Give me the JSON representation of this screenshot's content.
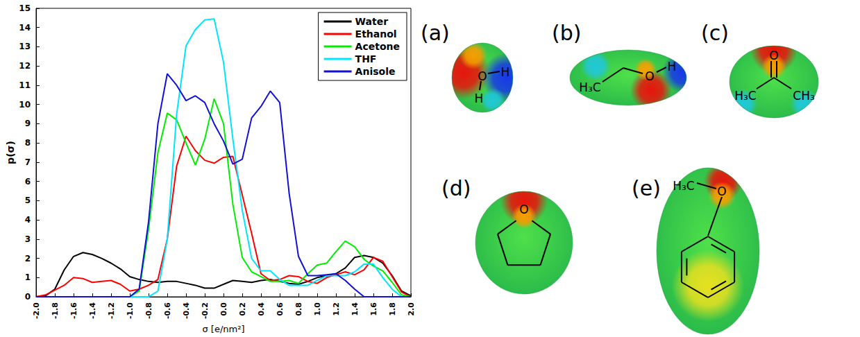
{
  "chart_data": {
    "type": "line",
    "x_label": "σ [e/nm²]",
    "y_label": "p(σ)",
    "x": [
      -2.0,
      -1.9,
      -1.8,
      -1.7,
      -1.6,
      -1.5,
      -1.4,
      -1.3,
      -1.2,
      -1.1,
      -1.0,
      -0.9,
      -0.8,
      -0.7,
      -0.6,
      -0.5,
      -0.4,
      -0.3,
      -0.2,
      -0.1,
      0.0,
      0.1,
      0.2,
      0.3,
      0.4,
      0.5,
      0.6,
      0.7,
      0.8,
      0.9,
      1.0,
      1.1,
      1.2,
      1.3,
      1.4,
      1.5,
      1.6,
      1.7,
      1.8,
      1.9,
      2.0
    ],
    "series": [
      {
        "name": "Water",
        "color": "#000000",
        "values": [
          0,
          0.05,
          0.4,
          1.4,
          2.1,
          2.3,
          2.2,
          2.0,
          1.75,
          1.45,
          1.05,
          0.9,
          0.8,
          0.75,
          0.8,
          0.8,
          0.7,
          0.6,
          0.45,
          0.45,
          0.65,
          0.85,
          0.8,
          0.75,
          0.85,
          0.9,
          0.8,
          0.7,
          0.65,
          0.8,
          1.0,
          1.1,
          1.2,
          1.5,
          2.05,
          2.15,
          2.05,
          1.75,
          1.1,
          0.3,
          0.05
        ]
      },
      {
        "name": "Ethanol",
        "color": "#ff0000",
        "values": [
          0,
          0.1,
          0.35,
          0.6,
          1.0,
          0.95,
          0.75,
          0.8,
          0.85,
          0.65,
          0.3,
          0.4,
          0.6,
          0.9,
          3.0,
          6.8,
          8.35,
          7.6,
          7.1,
          6.95,
          7.25,
          7.3,
          5.3,
          3.3,
          1.2,
          0.85,
          0.9,
          1.1,
          1.05,
          0.8,
          0.7,
          1.0,
          1.15,
          1.3,
          1.15,
          1.4,
          2.05,
          1.85,
          1.05,
          0.25,
          0
        ]
      },
      {
        "name": "Acetone",
        "color": "#00ee00",
        "values": [
          0,
          0,
          0,
          0,
          0,
          0,
          0,
          0,
          0,
          0,
          0,
          0.3,
          3.5,
          7.5,
          9.55,
          9.2,
          8.0,
          6.85,
          8.2,
          10.3,
          9.0,
          4.8,
          2.05,
          1.3,
          1.05,
          0.8,
          0.8,
          0.85,
          0.7,
          1.2,
          1.65,
          1.75,
          2.35,
          2.9,
          2.6,
          1.95,
          1.6,
          1.35,
          0.75,
          0.1,
          0
        ]
      },
      {
        "name": "THF",
        "color": "#00e5ff",
        "values": [
          0,
          0,
          0,
          0,
          0,
          0,
          0,
          0,
          0,
          0,
          0,
          0,
          0,
          0.3,
          3.0,
          9.5,
          13.05,
          13.9,
          14.4,
          14.45,
          12.2,
          8.2,
          4.5,
          2.0,
          1.35,
          1.35,
          0.9,
          0.6,
          0.6,
          0.6,
          0.85,
          1.1,
          1.1,
          1.1,
          1.3,
          1.7,
          1.7,
          1.0,
          0.4,
          0,
          0
        ]
      },
      {
        "name": "Anisole",
        "color": "#1010d8",
        "values": [
          0,
          0,
          0,
          0,
          0,
          0,
          0,
          0,
          0,
          0,
          0,
          0.4,
          3.9,
          9.0,
          11.6,
          11.0,
          10.2,
          10.45,
          10.1,
          9.0,
          8.1,
          6.9,
          7.15,
          9.3,
          9.9,
          10.7,
          10.1,
          5.4,
          2.1,
          1.1,
          1.1,
          1.15,
          1.2,
          0.85,
          0.4,
          0,
          0,
          0,
          0,
          0,
          0
        ]
      }
    ],
    "xlim": [
      -2.0,
      2.0
    ],
    "xticks": [
      {
        "value": -2.0,
        "label": "-2.0"
      },
      {
        "value": -1.8,
        "label": "-1.8"
      },
      {
        "value": -1.6,
        "label": "-1.6"
      },
      {
        "value": -1.4,
        "label": "-1.4"
      },
      {
        "value": -1.2,
        "label": "-1.2"
      },
      {
        "value": -1.0,
        "label": "-1.0"
      },
      {
        "value": -0.8,
        "label": "-0.8"
      },
      {
        "value": -0.6,
        "label": "-0.6"
      },
      {
        "value": -0.4,
        "label": "-0.4"
      },
      {
        "value": -0.2,
        "label": "-0.2"
      },
      {
        "value": 0.0,
        "label": "0.0"
      },
      {
        "value": 0.2,
        "label": "0.2"
      },
      {
        "value": 0.4,
        "label": "0.4"
      },
      {
        "value": 0.6,
        "label": "0.6"
      },
      {
        "value": 0.8,
        "label": "0.8"
      },
      {
        "value": 1.0,
        "label": "1.0"
      },
      {
        "value": 1.2,
        "label": "1.2"
      },
      {
        "value": 1.4,
        "label": "1.4"
      },
      {
        "value": 1.6,
        "label": "1.6"
      },
      {
        "value": 1.8,
        "label": "1.8"
      },
      {
        "value": 2.0,
        "label": "2.0"
      }
    ],
    "ylim": [
      0,
      15
    ],
    "yticks": [
      0,
      1,
      2,
      3,
      4,
      5,
      6,
      7,
      8,
      9,
      10,
      11,
      12,
      13,
      14,
      15
    ],
    "grid": false,
    "legend": "top-right"
  },
  "molecules": [
    {
      "label": "(a)",
      "atoms": [
        "O",
        "H",
        "H"
      ]
    },
    {
      "label": "(b)",
      "atoms": [
        "H₃C",
        "O",
        "H"
      ]
    },
    {
      "label": "(c)",
      "atoms": [
        "O",
        "H₃C",
        "CH₃"
      ]
    },
    {
      "label": "(d)",
      "atoms": [
        "O"
      ]
    },
    {
      "label": "(e)",
      "atoms": [
        "H₃C",
        "O"
      ]
    }
  ]
}
